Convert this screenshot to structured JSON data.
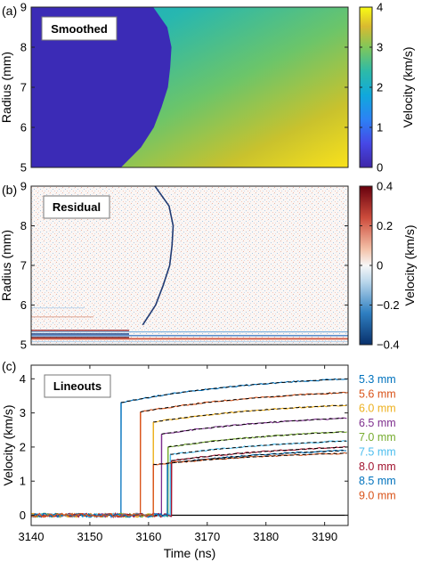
{
  "chart_data": [
    {
      "type": "heatmap",
      "panel_label": "(a)",
      "annotation": "Smoothed",
      "ylabel": "Radius (mm)",
      "ylim": [
        5,
        9
      ],
      "yticks": [
        5,
        6,
        7,
        8,
        9
      ],
      "xlim": [
        3140,
        3194
      ],
      "colorbar": {
        "label": "Velocity (km/s)",
        "range": [
          0,
          4
        ],
        "ticks": [
          0,
          1,
          2,
          3,
          4
        ],
        "colormap": "parula"
      },
      "front": {
        "radius": [
          5.0,
          5.5,
          6.0,
          6.5,
          7.0,
          7.5,
          8.0,
          8.5,
          9.0
        ],
        "time": [
          3155.3,
          3158.7,
          3160.9,
          3162.2,
          3163.3,
          3163.7,
          3163.9,
          3163.2,
          3160.8
        ]
      },
      "velocity_behind_front": "0",
      "velocity_ahead_min": 1.6,
      "velocity_ahead_max": 4.0
    },
    {
      "type": "heatmap",
      "panel_label": "(b)",
      "annotation": "Residual",
      "ylabel": "Radius (mm)",
      "ylim": [
        5,
        9
      ],
      "yticks": [
        5,
        6,
        7,
        8,
        9
      ],
      "xlim": [
        3140,
        3194
      ],
      "colorbar": {
        "label": "Velocity (km/s)",
        "range": [
          -0.4,
          0.4
        ],
        "ticks": [
          "-0.4",
          "-0.2",
          "0",
          "0.2",
          "0.4"
        ],
        "colormap": "red-white-blue"
      }
    },
    {
      "type": "line",
      "panel_label": "(c)",
      "annotation": "Lineouts",
      "xlabel": "Time (ns)",
      "ylabel": "Velocity (km/s)",
      "xlim": [
        3140,
        3194
      ],
      "ylim": [
        -0.3,
        4.4
      ],
      "xticks": [
        3140,
        3150,
        3160,
        3170,
        3180,
        3190
      ],
      "yticks": [
        0,
        1,
        2,
        3,
        4
      ],
      "fit_line_style": "black dashed",
      "series": [
        {
          "name": "5.3 mm",
          "color": "#0072BD",
          "t0": 3155.3,
          "v_start": 3.3,
          "v_end": 4.0
        },
        {
          "name": "5.6 mm",
          "color": "#D95319",
          "t0": 3158.6,
          "v_start": 3.03,
          "v_end": 3.6
        },
        {
          "name": "6.0 mm",
          "color": "#EDB120",
          "t0": 3160.8,
          "v_start": 2.73,
          "v_end": 3.23
        },
        {
          "name": "6.5 mm",
          "color": "#7E2F8E",
          "t0": 3162.2,
          "v_start": 2.38,
          "v_end": 2.85
        },
        {
          "name": "7.0 mm",
          "color": "#77AC30",
          "t0": 3163.3,
          "v_start": 2.0,
          "v_end": 2.45
        },
        {
          "name": "7.5 mm",
          "color": "#4DBEEE",
          "t0": 3163.7,
          "v_start": 1.78,
          "v_end": 2.18
        },
        {
          "name": "8.0 mm",
          "color": "#A2142F",
          "t0": 3163.9,
          "v_start": 1.6,
          "v_end": 2.0
        },
        {
          "name": "8.5 mm",
          "color": "#0072BD",
          "t0": 3163.2,
          "v_start": 1.52,
          "v_end": 1.9
        },
        {
          "name": "9.0 mm",
          "color": "#D95319",
          "t0": 3160.8,
          "v_start": 1.48,
          "v_end": 1.82
        }
      ]
    }
  ]
}
